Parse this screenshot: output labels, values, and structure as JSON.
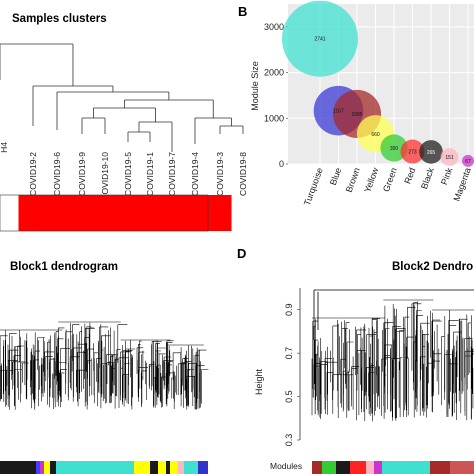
{
  "panel_a": {
    "title": "Samples clusters",
    "samples": [
      "H4",
      "COVID19-2",
      "COVID19-6",
      "COVID19-9",
      "COVID19-10",
      "COVID19-5",
      "COVID19-1",
      "COVID19-7",
      "COVID19-4",
      "COVID19-3",
      "COVID19-8"
    ],
    "trait_colors": [
      "#ffffff",
      "#ff0000",
      "#ff0000",
      "#ff0000",
      "#ff0000",
      "#ff0000",
      "#ff0000",
      "#ff0000",
      "#ff0000",
      "#ff0000",
      "#ff0000"
    ]
  },
  "panel_c": {
    "title": "Block1 dendrogram"
  },
  "panel_d": {
    "title": "Block2 Dendro",
    "xlabel": "Modules"
  },
  "chart_data": [
    {
      "panel": "B",
      "type": "scatter",
      "title": "",
      "xlabel": "",
      "ylabel": "Module Size",
      "ylim": [
        0,
        3500
      ],
      "yticks": [
        0,
        1000,
        2000,
        3000
      ],
      "grid": true,
      "categories": [
        "Turquoise",
        "Blue",
        "Brown",
        "Yellow",
        "Green",
        "Red",
        "Black",
        "Pink",
        "Magenta"
      ],
      "values": [
        2741,
        1167,
        1095,
        660,
        350,
        273,
        265,
        151,
        67
      ],
      "labels": [
        "2741",
        "1167",
        "1095",
        "660",
        "350",
        "273",
        "265",
        "151",
        "67"
      ],
      "colors": [
        "#40e0d0",
        "#3b3bd6",
        "#a52a2a",
        "#ffff55",
        "#33cc33",
        "#ff3333",
        "#222222",
        "#ffb6c1",
        "#cc33cc"
      ]
    },
    {
      "panel": "D",
      "type": "dendrogram",
      "title": "Block2 Dendro",
      "ylabel": "Height",
      "xlabel": "Modules",
      "ylim": [
        0.3,
        1.0
      ],
      "yticks": [
        0.3,
        0.5,
        0.7,
        0.9
      ]
    }
  ]
}
